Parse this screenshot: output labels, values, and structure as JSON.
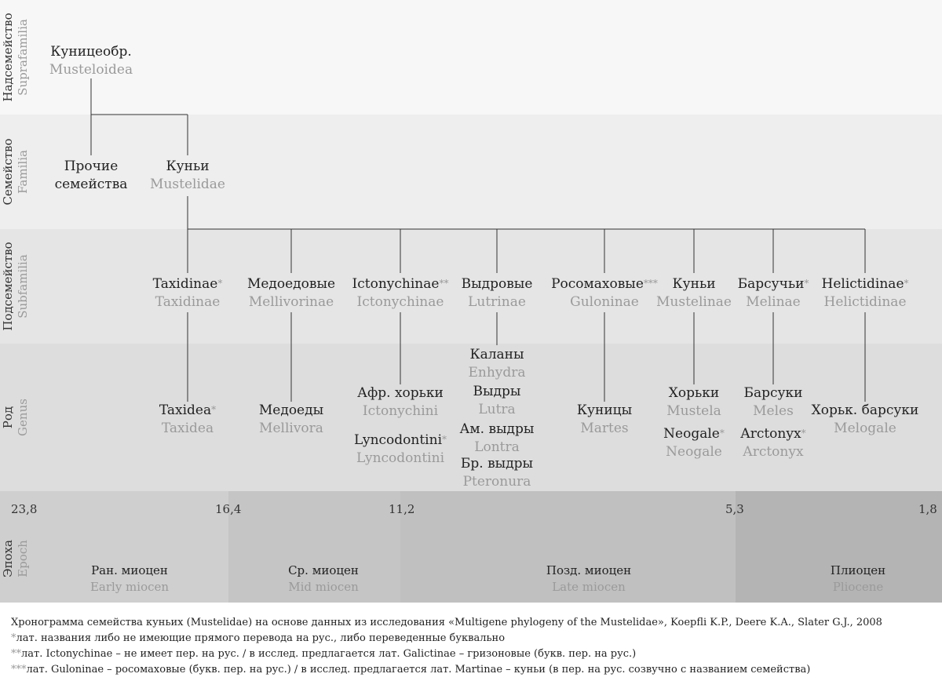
{
  "ranks": {
    "suprafamily": {
      "ru": "Надсемейство",
      "la": "Suprafamilia"
    },
    "family": {
      "ru": "Семейство",
      "la": "Familia"
    },
    "subfamily": {
      "ru": "Подсемейство",
      "la": "Subfamilia"
    },
    "genus": {
      "ru": "Род",
      "la": "Genus"
    },
    "epoch": {
      "ru": "Эпоха",
      "la": "Epoch"
    }
  },
  "suprafamily": {
    "ru": "Куницеобр.",
    "la": "Musteloidea"
  },
  "families": [
    {
      "ru_line1": "Прочие",
      "ru_line2": "семейства"
    },
    {
      "ru": "Куньи",
      "la": "Mustelidae"
    }
  ],
  "subfamilies": [
    {
      "ru": "Taxidinae",
      "star": "*",
      "la": "Taxidinae"
    },
    {
      "ru": "Медоедовые",
      "star": "",
      "la": "Mellivorinae"
    },
    {
      "ru": "Ictonychinae",
      "star": "**",
      "la": "Ictonychinae"
    },
    {
      "ru": "Выдровые",
      "star": "",
      "la": "Lutrinae"
    },
    {
      "ru": "Росомаховые",
      "star": "***",
      "la": "Guloninae"
    },
    {
      "ru": "Куньи",
      "star": "",
      "la": "Mustelinae"
    },
    {
      "ru": "Барсучьи",
      "star": "*",
      "la": "Melinae"
    },
    {
      "ru": "Helictidinae",
      "star": "*",
      "la": "Helictidinae"
    }
  ],
  "genera": {
    "taxidea": {
      "ru": "Taxidea",
      "star": "*",
      "la": "Taxidea"
    },
    "mellivora": {
      "ru": "Медоеды",
      "la": "Mellivora"
    },
    "ictonychini": {
      "ru": "Афр. хорьки",
      "la": "Ictonychini"
    },
    "lyncodontini": {
      "ru": "Lyncodontini",
      "star": "*",
      "la": "Lyncodontini"
    },
    "enhydra": {
      "ru": "Каланы",
      "la": "Enhydra"
    },
    "lutra": {
      "ru": "Выдры",
      "la": "Lutra"
    },
    "lontra": {
      "ru": "Ам. выдры",
      "la": "Lontra"
    },
    "pteronura": {
      "ru": "Бр. выдры",
      "la": "Pteronura"
    },
    "martes": {
      "ru": "Куницы",
      "la": "Martes"
    },
    "mustela": {
      "ru": "Хорьки",
      "la": "Mustela"
    },
    "neogale": {
      "ru": "Neogale",
      "star": "*",
      "la": "Neogale"
    },
    "meles": {
      "ru": "Барсуки",
      "la": "Meles"
    },
    "arctonyx": {
      "ru": "Arctonyx",
      "star": "*",
      "la": "Arctonyx"
    },
    "melogale": {
      "ru": "Хорьк. барсуки",
      "la": "Melogale"
    }
  },
  "timescale": {
    "ticks": [
      "23,8",
      "16,4",
      "11,2",
      "5,3",
      "1,8"
    ],
    "epochs": [
      {
        "ru": "Ран. миоцен",
        "la": "Early miocen"
      },
      {
        "ru": "Ср. миоцен",
        "la": "Mid miocen"
      },
      {
        "ru": "Позд. миоцен",
        "la": "Late miocen"
      },
      {
        "ru": "Плиоцен",
        "la": "Pliocene"
      }
    ]
  },
  "caption": {
    "line1": "Хронограмма семейства куньих (Mustelidae) на основе данных из исследования «Multigene phylogeny of the Mustelidae», Koepfli K.P., Deere K.A., Slater G.J., 2008",
    "note1_mark": "*",
    "note1": "лат. названия либо не имеющие прямого перевода на рус., либо переведенные буквально",
    "note2_mark": "**",
    "note2": "лат. Ictonychinae – не имеет пер. на рус.  / в исслед. предлагается лат. Galictinae – гризоновые (букв. пер. на рус.)",
    "note3_mark": "***",
    "note3": "лат. Guloninae – росомаховые (букв. пер. на рус.)  / в исслед. предлагается лат. Martinae – куньи (в пер. на рус. созвучно с названием семейства)"
  }
}
